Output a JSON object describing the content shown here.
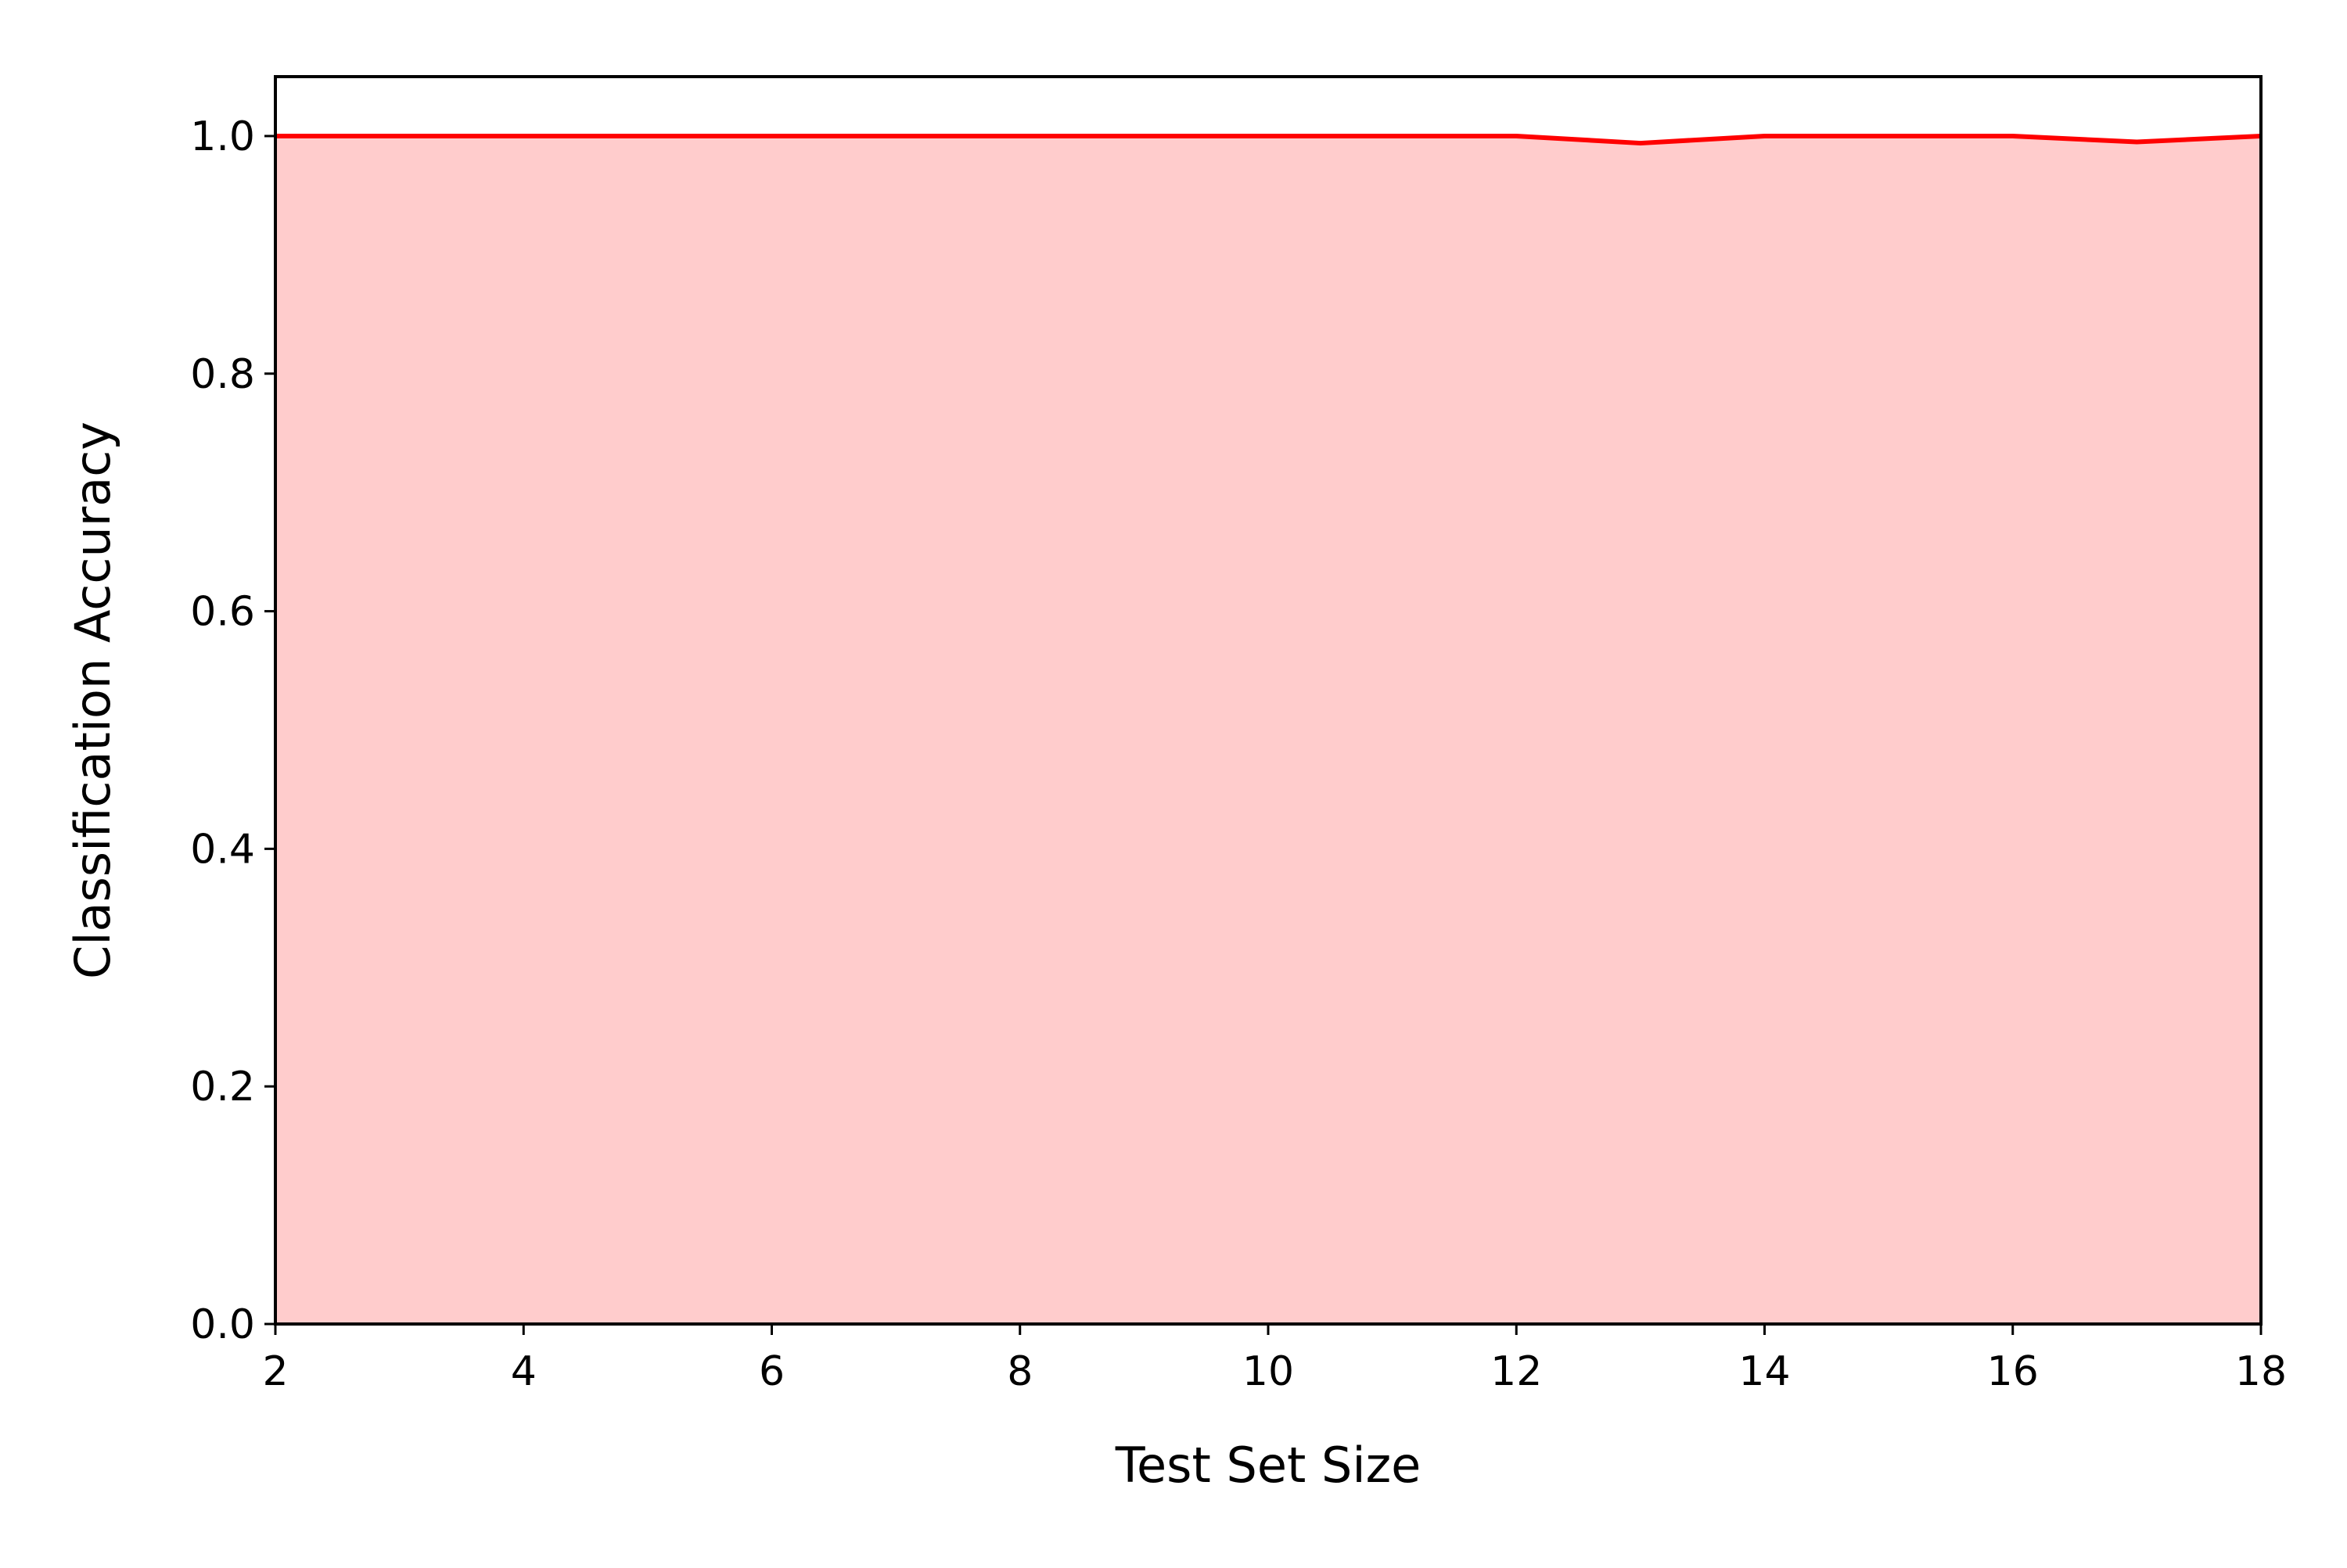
{
  "chart_data": {
    "type": "area",
    "title": "",
    "xlabel": "Test Set Size",
    "ylabel": "Classification Accuracy",
    "xlim": [
      2,
      18
    ],
    "ylim": [
      0,
      1.05
    ],
    "x_ticks": [
      2,
      4,
      6,
      8,
      10,
      12,
      14,
      16,
      18
    ],
    "y_ticks": [
      0.0,
      0.2,
      0.4,
      0.6,
      0.8,
      1.0
    ],
    "grid": false,
    "legend": "none",
    "series": [
      {
        "x": [
          2,
          3,
          4,
          5,
          6,
          7,
          8,
          9,
          10,
          11,
          12,
          13,
          14,
          15,
          16,
          17,
          18
        ],
        "y": [
          1.0,
          1.0,
          1.0,
          1.0,
          1.0,
          1.0,
          1.0,
          1.0,
          1.0,
          1.0,
          1.0,
          0.994,
          1.0,
          1.0,
          1.0,
          0.995,
          1.0
        ],
        "line_color": "#ff0000",
        "fill_color": "#ffcccc"
      }
    ],
    "colors": {
      "line": "#ff0000",
      "fill": "#ffcccc",
      "axes": "#000000"
    }
  }
}
